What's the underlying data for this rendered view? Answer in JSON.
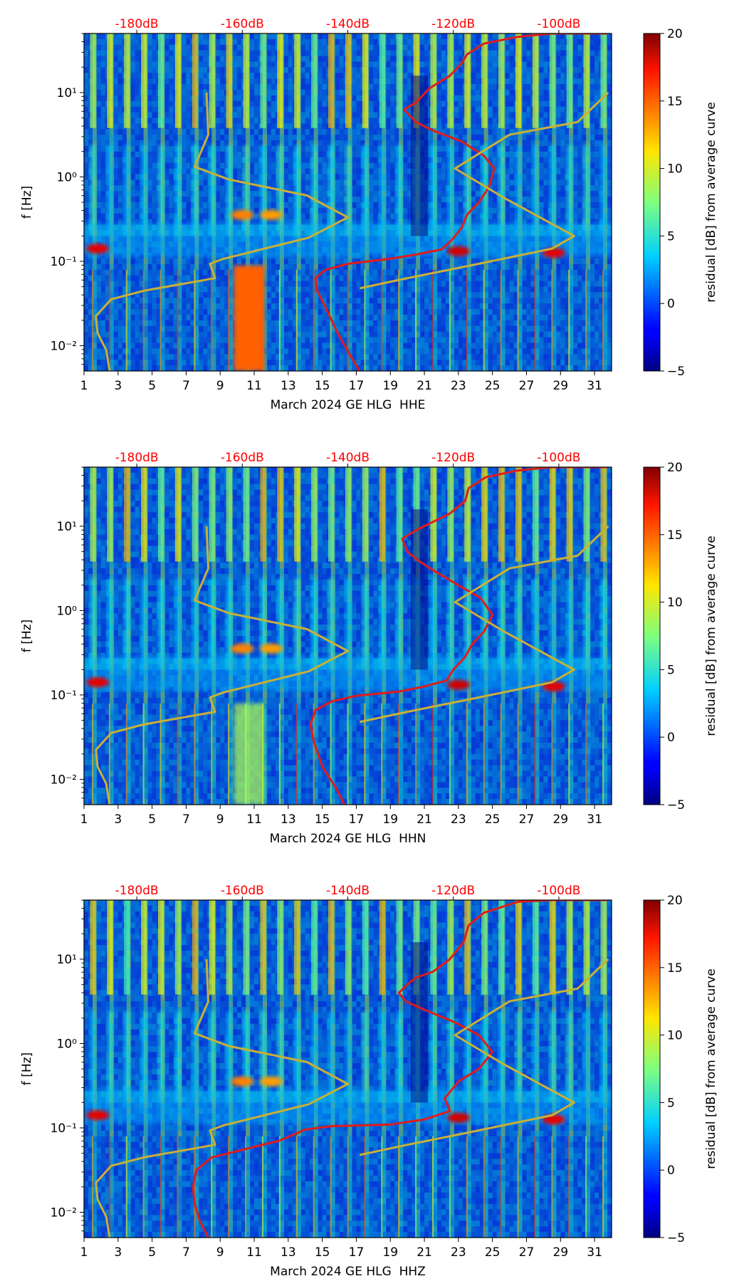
{
  "chart_data": [
    {
      "type": "heatmap",
      "title": "",
      "xlabel": "March 2024 GE HLG  HHE",
      "ylabel": "f [Hz]",
      "xlim": [
        1,
        32
      ],
      "ylim_log10": [
        -2.3,
        1.7
      ],
      "x_ticks": [
        1,
        3,
        5,
        7,
        9,
        11,
        13,
        15,
        17,
        19,
        21,
        23,
        25,
        27,
        29,
        31
      ],
      "x_tick_labels": [
        "1",
        "3",
        "5",
        "7",
        "9",
        "11",
        "13",
        "15",
        "17",
        "19",
        "21",
        "23",
        "25",
        "27",
        "29",
        "31"
      ],
      "y_ticks_log10": [
        -2,
        -1,
        0,
        1
      ],
      "y_tick_labels": [
        "10⁻²",
        "10⁻¹",
        "10⁰",
        "10¹"
      ],
      "top_axis_ticks": [
        {
          "x": 4.1,
          "label": "-180dB"
        },
        {
          "x": 10.3,
          "label": "-160dB"
        },
        {
          "x": 16.5,
          "label": "-140dB"
        },
        {
          "x": 22.7,
          "label": "-120dB"
        },
        {
          "x": 28.9,
          "label": "-100dB"
        }
      ],
      "top_axis_color": "#ff0000",
      "colorbar": {
        "label": "residual [dB] from average curve",
        "min": -5,
        "max": 20,
        "ticks": [
          -5,
          0,
          5,
          10,
          15,
          20
        ],
        "tick_labels": [
          "−5",
          "0",
          "5",
          "10",
          "15",
          "20"
        ],
        "colormap": "jet"
      },
      "series": [
        {
          "name": "average noise curve",
          "color": "#e01c1c",
          "points": [
            [
              17.2,
              -2.3
            ],
            [
              16.6,
              -2.1
            ],
            [
              15.9,
              -1.85
            ],
            [
              15.2,
              -1.55
            ],
            [
              14.7,
              -1.35
            ],
            [
              14.6,
              -1.2
            ],
            [
              15.2,
              -1.1
            ],
            [
              16.5,
              -1.03
            ],
            [
              19,
              -0.97
            ],
            [
              20.5,
              -0.92
            ],
            [
              22,
              -0.86
            ],
            [
              22.6,
              -0.75
            ],
            [
              23.2,
              -0.6
            ],
            [
              23.5,
              -0.45
            ],
            [
              24.2,
              -0.3
            ],
            [
              24.8,
              -0.12
            ],
            [
              25.1,
              0.1
            ],
            [
              24.5,
              0.25
            ],
            [
              23.2,
              0.42
            ],
            [
              21.5,
              0.55
            ],
            [
              20.5,
              0.65
            ],
            [
              19.8,
              0.8
            ],
            [
              20.5,
              0.88
            ],
            [
              21.3,
              1.05
            ],
            [
              22.5,
              1.2
            ],
            [
              23.2,
              1.35
            ],
            [
              23.5,
              1.45
            ],
            [
              24.5,
              1.58
            ],
            [
              26.5,
              1.66
            ],
            [
              28.5,
              1.7
            ],
            [
              31.8,
              1.7
            ]
          ]
        },
        {
          "name": "reference noise model",
          "color": "#c9b037",
          "points": [
            [
              2.5,
              -2.3
            ],
            [
              2.3,
              -2.05
            ],
            [
              1.8,
              -1.85
            ],
            [
              1.7,
              -1.65
            ],
            [
              2.6,
              -1.45
            ],
            [
              4.5,
              -1.35
            ],
            [
              8.7,
              -1.2
            ],
            [
              8.4,
              -1.03
            ],
            [
              9.2,
              -0.97
            ],
            [
              14.2,
              -0.72
            ],
            [
              16.5,
              -0.48
            ],
            [
              14.1,
              -0.22
            ],
            [
              9.5,
              -0.03
            ],
            [
              7.5,
              0.12
            ],
            [
              8.3,
              0.5
            ],
            [
              8.2,
              1
            ],
            null,
            [
              17.2,
              -1.32
            ],
            [
              20,
              -1.2
            ],
            [
              23.7,
              -1.05
            ],
            [
              28.5,
              -0.85
            ],
            [
              29.8,
              -0.7
            ],
            [
              25.7,
              -0.25
            ],
            [
              22.8,
              0.1
            ],
            [
              26,
              0.5
            ],
            [
              30,
              0.65
            ],
            [
              31.8,
              1
            ]
          ]
        }
      ]
    },
    {
      "type": "heatmap",
      "title": "",
      "xlabel": "March 2024 GE HLG  HHN",
      "ylabel": "f [Hz]",
      "xlim": [
        1,
        32
      ],
      "ylim_log10": [
        -2.3,
        1.7
      ],
      "x_ticks": [
        1,
        3,
        5,
        7,
        9,
        11,
        13,
        15,
        17,
        19,
        21,
        23,
        25,
        27,
        29,
        31
      ],
      "x_tick_labels": [
        "1",
        "3",
        "5",
        "7",
        "9",
        "11",
        "13",
        "15",
        "17",
        "19",
        "21",
        "23",
        "25",
        "27",
        "29",
        "31"
      ],
      "y_ticks_log10": [
        -2,
        -1,
        0,
        1
      ],
      "y_tick_labels": [
        "10⁻²",
        "10⁻¹",
        "10⁰",
        "10¹"
      ],
      "top_axis_ticks": [
        {
          "x": 4.1,
          "label": "-180dB"
        },
        {
          "x": 10.3,
          "label": "-160dB"
        },
        {
          "x": 16.5,
          "label": "-140dB"
        },
        {
          "x": 22.7,
          "label": "-120dB"
        },
        {
          "x": 28.9,
          "label": "-100dB"
        }
      ],
      "top_axis_color": "#ff0000",
      "colorbar": {
        "label": "residual [dB] from average curve",
        "min": -5,
        "max": 20,
        "ticks": [
          -5,
          0,
          5,
          10,
          15,
          20
        ],
        "tick_labels": [
          "−5",
          "0",
          "5",
          "10",
          "15",
          "20"
        ],
        "colormap": "jet"
      },
      "series": [
        {
          "name": "average noise curve",
          "color": "#e01c1c",
          "points": [
            [
              16.3,
              -2.3
            ],
            [
              15.8,
              -2.1
            ],
            [
              15,
              -1.85
            ],
            [
              14.5,
              -1.55
            ],
            [
              14.3,
              -1.35
            ],
            [
              14.6,
              -1.18
            ],
            [
              15.5,
              -1.08
            ],
            [
              17,
              -1.01
            ],
            [
              19.5,
              -0.96
            ],
            [
              21,
              -0.9
            ],
            [
              22.3,
              -0.83
            ],
            [
              22.7,
              -0.7
            ],
            [
              23.4,
              -0.55
            ],
            [
              23.8,
              -0.4
            ],
            [
              24.5,
              -0.25
            ],
            [
              25,
              -0.05
            ],
            [
              24.3,
              0.15
            ],
            [
              23,
              0.3
            ],
            [
              21.5,
              0.48
            ],
            [
              20.6,
              0.6
            ],
            [
              20,
              0.7
            ],
            [
              19.7,
              0.85
            ],
            [
              20.5,
              0.95
            ],
            [
              21.5,
              1.05
            ],
            [
              22.5,
              1.15
            ],
            [
              23.4,
              1.3
            ],
            [
              23.6,
              1.45
            ],
            [
              24.6,
              1.58
            ],
            [
              26.5,
              1.66
            ],
            [
              28.5,
              1.7
            ],
            [
              31.8,
              1.7
            ]
          ]
        },
        {
          "name": "reference noise model",
          "color": "#c9b037",
          "points": [
            [
              2.5,
              -2.3
            ],
            [
              2.3,
              -2.05
            ],
            [
              1.8,
              -1.85
            ],
            [
              1.7,
              -1.65
            ],
            [
              2.6,
              -1.45
            ],
            [
              4.5,
              -1.35
            ],
            [
              8.7,
              -1.2
            ],
            [
              8.4,
              -1.03
            ],
            [
              9.2,
              -0.97
            ],
            [
              14.2,
              -0.72
            ],
            [
              16.5,
              -0.48
            ],
            [
              14.1,
              -0.22
            ],
            [
              9.5,
              -0.03
            ],
            [
              7.5,
              0.12
            ],
            [
              8.3,
              0.5
            ],
            [
              8.2,
              1
            ],
            null,
            [
              17.2,
              -1.32
            ],
            [
              20,
              -1.2
            ],
            [
              23.7,
              -1.05
            ],
            [
              28.5,
              -0.85
            ],
            [
              29.8,
              -0.7
            ],
            [
              25.7,
              -0.25
            ],
            [
              22.8,
              0.1
            ],
            [
              26,
              0.5
            ],
            [
              30,
              0.65
            ],
            [
              31.8,
              1
            ]
          ]
        }
      ]
    },
    {
      "type": "heatmap",
      "title": "",
      "xlabel": "March 2024 GE HLG  HHZ",
      "ylabel": "f [Hz]",
      "xlim": [
        1,
        32
      ],
      "ylim_log10": [
        -2.3,
        1.7
      ],
      "x_ticks": [
        1,
        3,
        5,
        7,
        9,
        11,
        13,
        15,
        17,
        19,
        21,
        23,
        25,
        27,
        29,
        31
      ],
      "x_tick_labels": [
        "1",
        "3",
        "5",
        "7",
        "9",
        "11",
        "13",
        "15",
        "17",
        "19",
        "21",
        "23",
        "25",
        "27",
        "29",
        "31"
      ],
      "y_ticks_log10": [
        -2,
        -1,
        0,
        1
      ],
      "y_tick_labels": [
        "10⁻²",
        "10⁻¹",
        "10⁰",
        "10¹"
      ],
      "top_axis_ticks": [
        {
          "x": 4.1,
          "label": "-180dB"
        },
        {
          "x": 10.3,
          "label": "-160dB"
        },
        {
          "x": 16.5,
          "label": "-140dB"
        },
        {
          "x": 22.7,
          "label": "-120dB"
        },
        {
          "x": 28.9,
          "label": "-100dB"
        }
      ],
      "top_axis_color": "#ff0000",
      "colorbar": {
        "label": "residual [dB] from average curve",
        "min": -5,
        "max": 20,
        "ticks": [
          -5,
          0,
          5,
          10,
          15,
          20
        ],
        "tick_labels": [
          "−5",
          "0",
          "5",
          "10",
          "15",
          "20"
        ],
        "colormap": "jet"
      },
      "series": [
        {
          "name": "average noise curve",
          "color": "#e01c1c",
          "points": [
            [
              8.3,
              -2.3
            ],
            [
              7.8,
              -2.1
            ],
            [
              7.5,
              -1.9
            ],
            [
              7.4,
              -1.7
            ],
            [
              7.6,
              -1.5
            ],
            [
              8.5,
              -1.35
            ],
            [
              10.5,
              -1.25
            ],
            [
              12.5,
              -1.15
            ],
            [
              14,
              -1.02
            ],
            [
              15.5,
              -0.98
            ],
            [
              19,
              -0.96
            ],
            [
              21,
              -0.9
            ],
            [
              22.5,
              -0.8
            ],
            [
              22.2,
              -0.65
            ],
            [
              23,
              -0.45
            ],
            [
              24.2,
              -0.3
            ],
            [
              25,
              -0.1
            ],
            [
              24.2,
              0.1
            ],
            [
              22.8,
              0.25
            ],
            [
              21,
              0.4
            ],
            [
              19.9,
              0.5
            ],
            [
              19.5,
              0.6
            ],
            [
              20,
              0.7
            ],
            [
              20.5,
              0.78
            ],
            [
              21.5,
              0.85
            ],
            [
              22.5,
              1.0
            ],
            [
              23.3,
              1.2
            ],
            [
              23.6,
              1.4
            ],
            [
              24.5,
              1.55
            ],
            [
              26.5,
              1.68
            ],
            [
              28.5,
              1.7
            ],
            [
              31.8,
              1.7
            ]
          ]
        },
        {
          "name": "reference noise model",
          "color": "#c9b037",
          "points": [
            [
              2.5,
              -2.3
            ],
            [
              2.3,
              -2.05
            ],
            [
              1.8,
              -1.85
            ],
            [
              1.7,
              -1.65
            ],
            [
              2.6,
              -1.45
            ],
            [
              4.5,
              -1.35
            ],
            [
              8.7,
              -1.2
            ],
            [
              8.4,
              -1.03
            ],
            [
              9.2,
              -0.97
            ],
            [
              14.2,
              -0.72
            ],
            [
              16.5,
              -0.48
            ],
            [
              14.1,
              -0.22
            ],
            [
              9.5,
              -0.03
            ],
            [
              7.5,
              0.12
            ],
            [
              8.3,
              0.5
            ],
            [
              8.2,
              1
            ],
            null,
            [
              17.2,
              -1.32
            ],
            [
              20,
              -1.2
            ],
            [
              23.7,
              -1.05
            ],
            [
              28.5,
              -0.85
            ],
            [
              29.8,
              -0.7
            ],
            [
              25.7,
              -0.25
            ],
            [
              22.8,
              0.1
            ],
            [
              26,
              0.5
            ],
            [
              30,
              0.65
            ],
            [
              31.8,
              1
            ]
          ]
        }
      ]
    }
  ]
}
